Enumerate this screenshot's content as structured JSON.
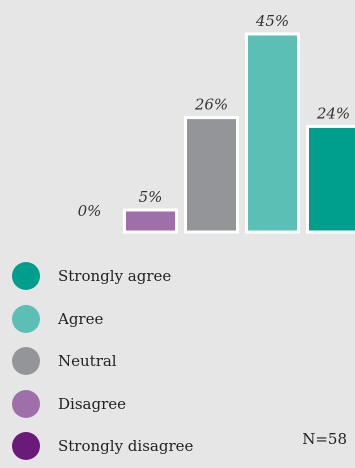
{
  "chart_data": {
    "type": "bar",
    "categories": [
      "Strongly disagree",
      "Disagree",
      "Neutral",
      "Agree",
      "Strongly agree"
    ],
    "values": [
      0,
      5,
      26,
      45,
      24
    ],
    "value_labels": [
      "0%",
      "5%",
      "26%",
      "45%",
      "24%"
    ],
    "ylim": [
      0,
      45
    ],
    "colors": [
      "#6a1b7a",
      "#9e6fa8",
      "#939598",
      "#5bbfb5",
      "#009e8c"
    ],
    "legend": [
      {
        "label": "Strongly agree",
        "color": "#009e8c"
      },
      {
        "label": "Agree",
        "color": "#5bbfb5"
      },
      {
        "label": "Neutral",
        "color": "#939598"
      },
      {
        "label": "Disagree",
        "color": "#9e6fa8"
      },
      {
        "label": "Strongly disagree",
        "color": "#6a1b7a"
      }
    ],
    "legend_placement": "bottom-left",
    "grid": false
  },
  "sample_size_label": "N=58"
}
